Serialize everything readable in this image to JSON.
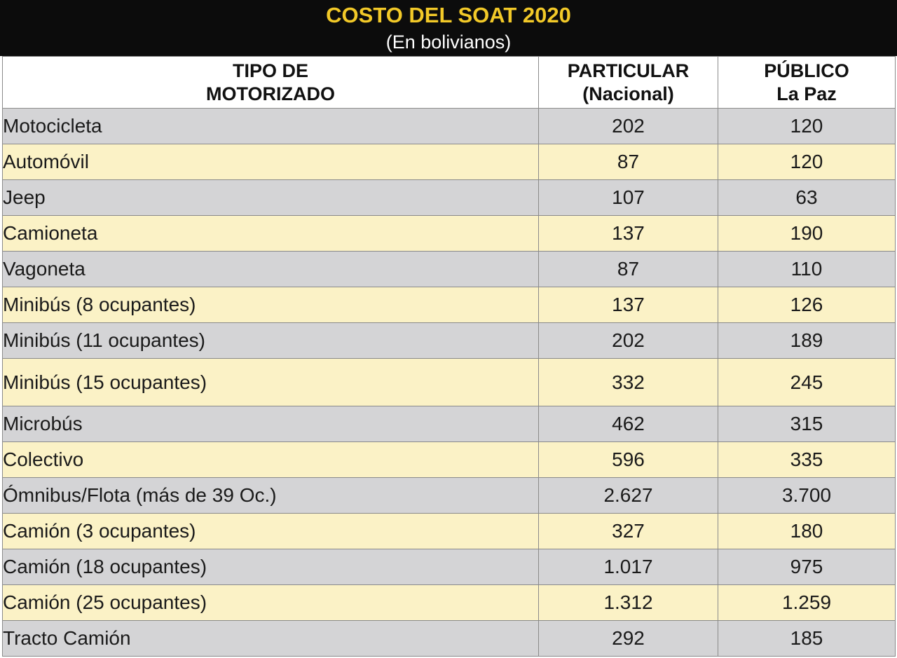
{
  "header": {
    "title": "COSTO DEL SOAT 2020",
    "subtitle": "(En bolivianos)"
  },
  "columns": {
    "type_line1": "TIPO DE",
    "type_line2": "MOTORIZADO",
    "particular_line1": "PARTICULAR",
    "particular_line2": "(Nacional)",
    "publico_line1": "PÚBLICO",
    "publico_line2": "La Paz"
  },
  "rows": [
    {
      "tipo": "Motocicleta",
      "particular": "202",
      "publico": "120"
    },
    {
      "tipo": "Automóvil",
      "particular": "87",
      "publico": "120"
    },
    {
      "tipo": "Jeep",
      "particular": "107",
      "publico": "63"
    },
    {
      "tipo": "Camioneta",
      "particular": "137",
      "publico": "190"
    },
    {
      "tipo": "Vagoneta",
      "particular": "87",
      "publico": "110"
    },
    {
      "tipo": "Minibús (8 ocupantes)",
      "particular": "137",
      "publico": "126"
    },
    {
      "tipo": "Minibús (11 ocupantes)",
      "particular": "202",
      "publico": "189"
    },
    {
      "tipo": "Minibús (15 ocupantes)",
      "particular": "332",
      "publico": "245"
    },
    {
      "tipo": "Microbús",
      "particular": "462",
      "publico": "315"
    },
    {
      "tipo": "Colectivo",
      "particular": "596",
      "publico": "335"
    },
    {
      "tipo": "Ómnibus/Flota (más de 39 Oc.)",
      "particular": "2.627",
      "publico": "3.700"
    },
    {
      "tipo": "Camión (3 ocupantes)",
      "particular": "327",
      "publico": "180"
    },
    {
      "tipo": "Camión (18 ocupantes)",
      "particular": "1.017",
      "publico": "975"
    },
    {
      "tipo": "Camión (25 ocupantes)",
      "particular": "1.312",
      "publico": "1.259"
    },
    {
      "tipo": "Tracto Camión",
      "particular": "292",
      "publico": "185"
    }
  ],
  "colors": {
    "banner_bg": "#0c0c0c",
    "title": "#f2c928",
    "row_gray": "#d4d4d6",
    "row_yellow": "#fbf2c6"
  }
}
